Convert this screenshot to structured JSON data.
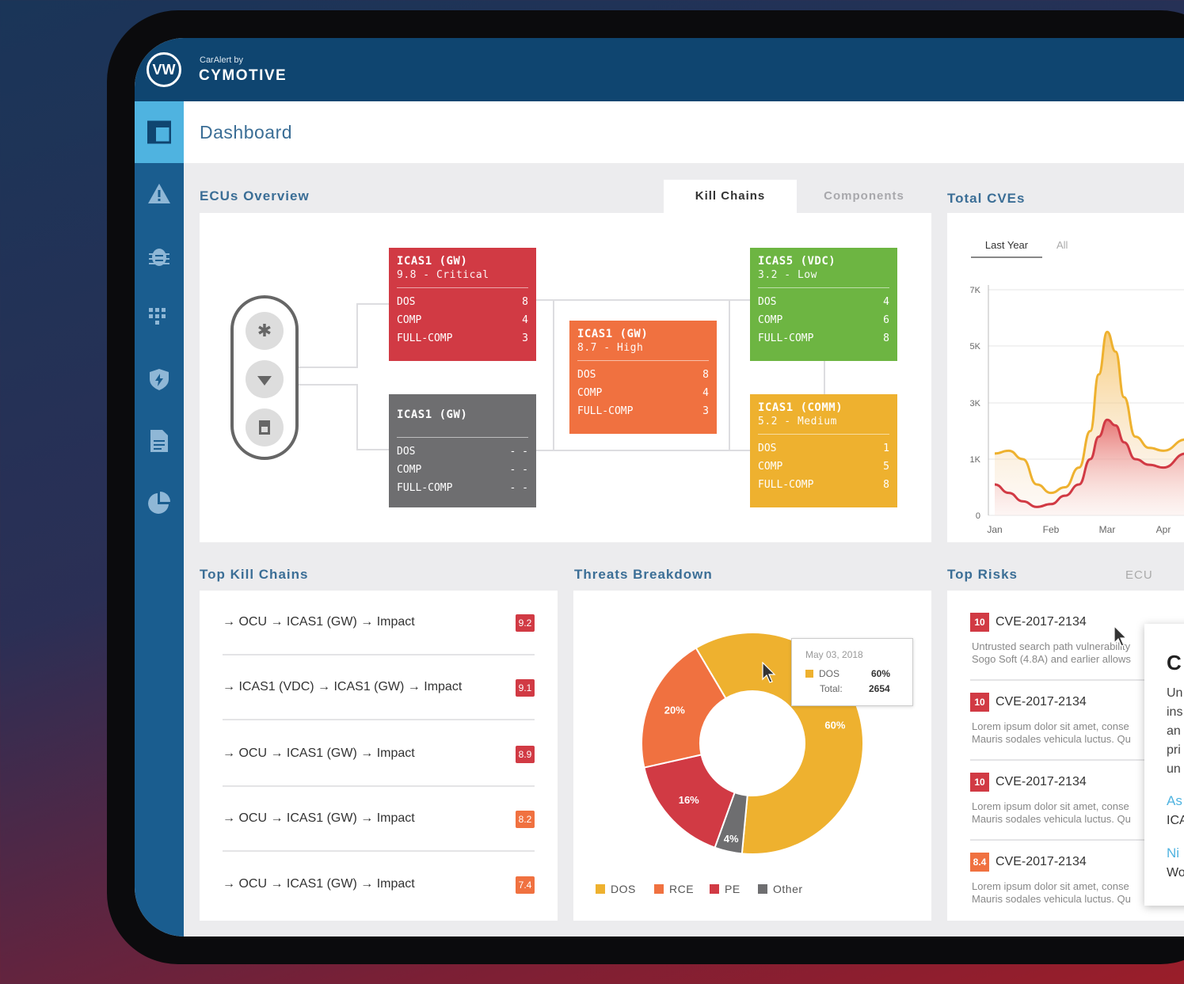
{
  "brand": {
    "small": "CarAlert by",
    "large": "CYMOTIVE",
    "logo": "VW"
  },
  "header": {
    "title": "Dashboard"
  },
  "sidebar": {
    "icons": [
      "dashboard-icon",
      "alert-icon",
      "bug-icon",
      "apps-grid-icon",
      "shield-icon",
      "document-icon",
      "pie-chart-icon"
    ]
  },
  "ecus": {
    "title": "ECUs Overview",
    "tabs": [
      "Kill Chains",
      "Components"
    ],
    "nodes": [
      {
        "title": "ICAS1 (GW)",
        "subtitle": "9.8 - Critical",
        "color": "#d13a44",
        "rows": [
          [
            "DOS",
            "8"
          ],
          [
            "COMP",
            "4"
          ],
          [
            "FULL-COMP",
            "3"
          ]
        ]
      },
      {
        "title": "ICAS1 (GW)",
        "subtitle": "",
        "color": "#6e6e70",
        "rows": [
          [
            "DOS",
            "- -"
          ],
          [
            "COMP",
            "- -"
          ],
          [
            "FULL-COMP",
            "- -"
          ]
        ]
      },
      {
        "title": "ICAS1 (GW)",
        "subtitle": "8.7 - High",
        "color": "#f07140",
        "rows": [
          [
            "DOS",
            "8"
          ],
          [
            "COMP",
            "4"
          ],
          [
            "FULL-COMP",
            "3"
          ]
        ]
      },
      {
        "title": "ICAS5 (VDC)",
        "subtitle": "3.2 - Low",
        "color": "#6db542",
        "rows": [
          [
            "DOS",
            "4"
          ],
          [
            "COMP",
            "6"
          ],
          [
            "FULL-COMP",
            "8"
          ]
        ]
      },
      {
        "title": "ICAS1 (COMM)",
        "subtitle": "5.2 - Medium",
        "color": "#eeb12f",
        "rows": [
          [
            "DOS",
            "1"
          ],
          [
            "COMP",
            "5"
          ],
          [
            "FULL-COMP",
            "8"
          ]
        ]
      }
    ]
  },
  "cves": {
    "title": "Total CVEs",
    "ranges": [
      "Last Year",
      "All"
    ],
    "chart_data": {
      "type": "area",
      "categories": [
        "Jan",
        "Feb",
        "Mar",
        "Apr"
      ],
      "y_ticks": [
        "0",
        "1K",
        "3K",
        "5K",
        "7K"
      ],
      "series": [
        {
          "color": "#eeb12f",
          "x": [
            0,
            0.25,
            0.5,
            0.75,
            1,
            1.25,
            1.5,
            1.7,
            1.85,
            2.0,
            2.15,
            2.3,
            2.5,
            2.75,
            3.0,
            3.4
          ],
          "values": [
            1.2,
            1.3,
            1.0,
            0.55,
            0.4,
            0.5,
            0.85,
            2.0,
            4.0,
            5.5,
            4.8,
            3.2,
            1.8,
            1.4,
            1.3,
            1.7
          ]
        },
        {
          "color": "#d13a44",
          "x": [
            0,
            0.25,
            0.5,
            0.75,
            1,
            1.25,
            1.5,
            1.7,
            1.85,
            2.0,
            2.15,
            2.3,
            2.5,
            2.75,
            3.0,
            3.4
          ],
          "values": [
            0.55,
            0.4,
            0.25,
            0.15,
            0.2,
            0.35,
            0.55,
            1.0,
            1.8,
            2.4,
            2.2,
            1.6,
            1.0,
            0.9,
            0.85,
            1.2
          ]
        }
      ]
    }
  },
  "kill_chains": {
    "title": "Top Kill Chains",
    "items": [
      {
        "path": [
          "OCU",
          "ICAS1 (GW)",
          "Impact"
        ],
        "score": "9.2",
        "color": "#d13a44"
      },
      {
        "path": [
          "ICAS1 (VDC)",
          "ICAS1 (GW)",
          "Impact"
        ],
        "score": "9.1",
        "color": "#d13a44"
      },
      {
        "path": [
          "OCU",
          "ICAS1 (GW)",
          "Impact"
        ],
        "score": "8.9",
        "color": "#d13a44"
      },
      {
        "path": [
          "OCU",
          "ICAS1 (GW)",
          "Impact"
        ],
        "score": "8.2",
        "color": "#f07140"
      },
      {
        "path": [
          "OCU",
          "ICAS1 (GW)",
          "Impact"
        ],
        "score": "7.4",
        "color": "#f07140"
      }
    ]
  },
  "threats": {
    "title": "Threats Breakdown",
    "chart_data": {
      "type": "pie",
      "series": [
        {
          "name": "DOS",
          "value": 60,
          "label": "60%",
          "color": "#eeb12f"
        },
        {
          "name": "Other",
          "value": 4,
          "label": "4%",
          "color": "#6e6e70"
        },
        {
          "name": "PE",
          "value": 16,
          "label": "16%",
          "color": "#d13a44"
        },
        {
          "name": "RCE",
          "value": 20,
          "label": "20%",
          "color": "#f07140"
        }
      ]
    },
    "tooltip": {
      "date": "May 03, 2018",
      "name": "DOS",
      "percent": "60%",
      "total_label": "Total:",
      "total": "2654"
    },
    "legend": [
      "DOS",
      "RCE",
      "PE",
      "Other"
    ]
  },
  "risks": {
    "title": "Top Risks",
    "filter": "ECU",
    "items": [
      {
        "score": "10",
        "color": "#d13a44",
        "id": "CVE-2017-2134",
        "desc1": "Untrusted search path vulnerability",
        "desc2": "Sogo Soft (4.8A) and earlier allows"
      },
      {
        "score": "10",
        "color": "#d13a44",
        "id": "CVE-2017-2134",
        "desc1": "Lorem ipsum dolor sit amet, conse",
        "desc2": "Mauris sodales vehicula luctus. Qu"
      },
      {
        "score": "10",
        "color": "#d13a44",
        "id": "CVE-2017-2134",
        "desc1": "Lorem ipsum dolor sit amet, conse",
        "desc2": "Mauris sodales vehicula luctus. Qu"
      },
      {
        "score": "8.4",
        "color": "#f07140",
        "id": "CVE-2017-2134",
        "desc1": "Lorem ipsum dolor sit amet, conse",
        "desc2": "Mauris sodales vehicula luctus. Qu"
      }
    ]
  },
  "popup": {
    "heading": "C",
    "lines": [
      "Un",
      "ins",
      "an",
      "pri",
      "un"
    ],
    "label1": "As",
    "val1": "ICA",
    "label2": "Ni",
    "val2": "Wo"
  }
}
